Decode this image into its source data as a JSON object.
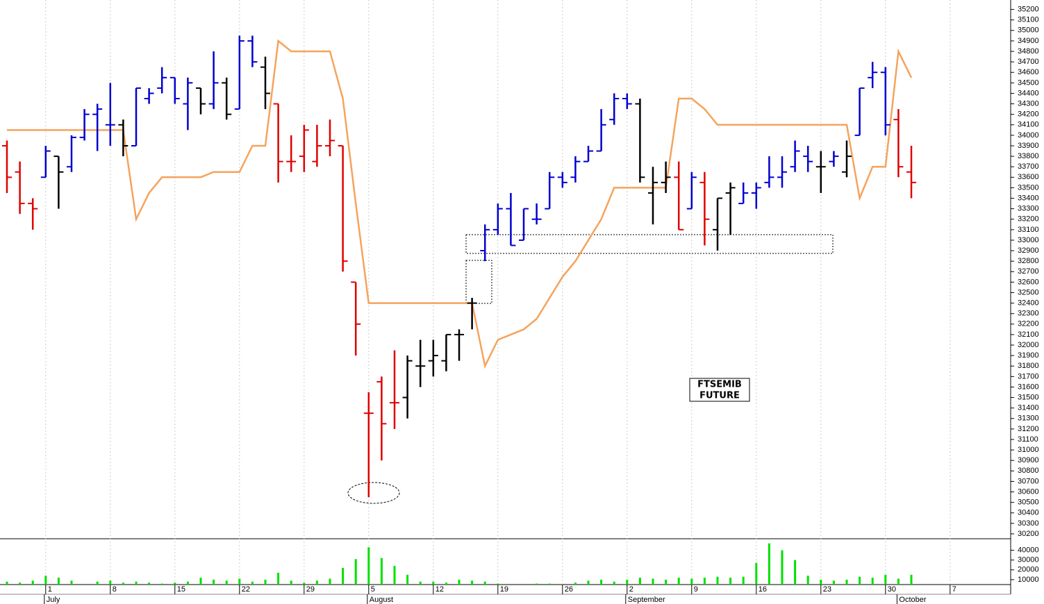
{
  "chart_data": {
    "type": "ohlc",
    "categories": [
      null,
      null,
      null,
      "1",
      null,
      null,
      null,
      null,
      "8",
      null,
      null,
      null,
      null,
      "15",
      null,
      null,
      null,
      null,
      "22",
      null,
      null,
      null,
      null,
      "29",
      null,
      null,
      null,
      null,
      "5",
      null,
      null,
      null,
      null,
      "12",
      null,
      null,
      null,
      null,
      "19",
      null,
      null,
      null,
      null,
      "26",
      null,
      null,
      null,
      null,
      "2",
      null,
      null,
      null,
      null,
      "9",
      null,
      null,
      null,
      null,
      "16",
      null,
      null,
      null,
      null,
      "23",
      null,
      null,
      null,
      null,
      "30",
      null,
      null,
      null,
      null,
      "7",
      null,
      null,
      null,
      null
    ],
    "category_months": [
      null,
      null,
      null,
      "July",
      null,
      null,
      null,
      null,
      null,
      null,
      null,
      null,
      null,
      null,
      null,
      null,
      null,
      null,
      null,
      null,
      null,
      null,
      null,
      null,
      null,
      null,
      null,
      null,
      "August",
      null,
      null,
      null,
      null,
      null,
      null,
      null,
      null,
      null,
      null,
      null,
      null,
      null,
      null,
      null,
      null,
      null,
      null,
      null,
      "September",
      null,
      null,
      null,
      null,
      null,
      null,
      null,
      null,
      null,
      null,
      null,
      null,
      null,
      null,
      null,
      null,
      null,
      null,
      null,
      null,
      "October",
      null,
      null,
      null,
      null,
      null,
      null,
      null,
      null
    ],
    "open": [
      33900,
      33650,
      33350,
      33600,
      33800,
      33700,
      33980,
      34200,
      34100,
      34100,
      33900,
      34350,
      34450,
      34550,
      34300,
      34450,
      34300,
      34500,
      34250,
      34900,
      34650,
      34300,
      33750,
      33800,
      33750,
      33900,
      33900,
      32600,
      31350,
      31650,
      31450,
      31500,
      31800,
      31850,
      31850,
      32100,
      32400,
      32900,
      33100,
      33300,
      33000,
      33200,
      33300,
      33600,
      33600,
      33750,
      33850,
      34150,
      34350,
      34300,
      33450,
      33550,
      33600,
      33300,
      33550,
      33100,
      33450,
      33350,
      33450,
      33550,
      33600,
      33700,
      33800,
      33700,
      33750,
      33650,
      34000,
      34550,
      34600,
      34150,
      33650,
      null,
      null,
      null,
      null,
      null,
      null,
      null
    ],
    "high": [
      33950,
      33750,
      33400,
      33900,
      33800,
      34000,
      34250,
      34300,
      34500,
      34150,
      34450,
      34450,
      34650,
      34550,
      34550,
      34450,
      34800,
      34550,
      34950,
      34950,
      34750,
      34300,
      34000,
      34100,
      34100,
      34150,
      33900,
      32600,
      31550,
      31700,
      31950,
      31900,
      32050,
      32050,
      32100,
      32150,
      32450,
      33150,
      33350,
      33450,
      33300,
      33350,
      33650,
      33650,
      33800,
      33900,
      34250,
      34400,
      34400,
      34350,
      33700,
      33750,
      33750,
      33650,
      33650,
      33400,
      33550,
      33550,
      33550,
      33800,
      33800,
      33950,
      33900,
      33850,
      33850,
      33950,
      34450,
      34700,
      34650,
      34250,
      33900,
      null,
      null,
      null,
      null,
      null,
      null,
      null
    ],
    "low": [
      33450,
      33250,
      33100,
      33600,
      33300,
      33650,
      33950,
      33850,
      33900,
      33800,
      33900,
      34300,
      34400,
      34300,
      34050,
      34200,
      34250,
      34150,
      34250,
      34650,
      34250,
      33550,
      33650,
      33650,
      33700,
      33800,
      32700,
      31900,
      30550,
      30900,
      31200,
      31300,
      31600,
      31700,
      31750,
      31850,
      32150,
      32800,
      33050,
      32950,
      33000,
      33150,
      33300,
      33500,
      33550,
      33750,
      33850,
      34100,
      34250,
      33550,
      33150,
      33450,
      33100,
      33300,
      32950,
      32900,
      33050,
      33350,
      33300,
      33500,
      33500,
      33650,
      33650,
      33450,
      33700,
      33600,
      34000,
      34450,
      34000,
      33600,
      33400,
      null,
      null,
      null,
      null,
      null,
      null,
      null
    ],
    "close": [
      33600,
      33350,
      33300,
      33850,
      33650,
      33980,
      34200,
      34250,
      34100,
      33900,
      34450,
      34400,
      34550,
      34350,
      34500,
      34300,
      34500,
      34200,
      34900,
      34700,
      34400,
      33750,
      33750,
      34050,
      33900,
      33950,
      32800,
      32200,
      31350,
      31250,
      31450,
      31850,
      31800,
      31900,
      32100,
      32100,
      32400,
      33100,
      33300,
      32950,
      33300,
      33200,
      33600,
      33550,
      33750,
      33850,
      34100,
      34350,
      34300,
      33600,
      33550,
      33600,
      33100,
      33600,
      33200,
      33400,
      33500,
      33450,
      33500,
      33600,
      33650,
      33850,
      33750,
      33700,
      33800,
      33800,
      34450,
      34600,
      34100,
      33700,
      33550,
      null,
      null,
      null,
      null,
      null,
      null,
      null
    ],
    "bar_colors": [
      "#e00000",
      "#e00000",
      "#e00000",
      "#0000d0",
      "#000000",
      "#0000d0",
      "#0000d0",
      "#0000d0",
      "#0000d0",
      "#000000",
      "#0000d0",
      "#0000d0",
      "#0000d0",
      "#0000d0",
      "#0000d0",
      "#000000",
      "#0000d0",
      "#000000",
      "#0000d0",
      "#0000d0",
      "#000000",
      "#e00000",
      "#e00000",
      "#e00000",
      "#e00000",
      "#e00000",
      "#e00000",
      "#e00000",
      "#e00000",
      "#e00000",
      "#e00000",
      "#000000",
      "#000000",
      "#000000",
      "#000000",
      "#000000",
      "#000000",
      "#0000d0",
      "#0000d0",
      "#0000d0",
      "#0000d0",
      "#0000d0",
      "#0000d0",
      "#0000d0",
      "#0000d0",
      "#0000d0",
      "#0000d0",
      "#0000d0",
      "#0000d0",
      "#000000",
      "#000000",
      "#000000",
      "#e00000",
      "#0000d0",
      "#e00000",
      "#000000",
      "#000000",
      "#0000d0",
      "#0000d0",
      "#0000d0",
      "#0000d0",
      "#0000d0",
      "#0000d0",
      "#000000",
      "#0000d0",
      "#000000",
      "#0000d0",
      "#0000d0",
      "#0000d0",
      "#e00000",
      "#e00000",
      null,
      null,
      null,
      null,
      null,
      null,
      null
    ],
    "overlay": {
      "color": "#f5a35c",
      "values": [
        34050,
        34050,
        34050,
        34050,
        34050,
        34050,
        34050,
        34050,
        34050,
        34050,
        33200,
        33450,
        33600,
        33600,
        33600,
        33600,
        33650,
        33650,
        33650,
        33900,
        33900,
        34900,
        34800,
        34800,
        34800,
        34800,
        34350,
        33350,
        32400,
        32400,
        32400,
        32400,
        32400,
        32400,
        32400,
        32400,
        32400,
        31800,
        32050,
        32100,
        32150,
        32250,
        32450,
        32650,
        32800,
        33000,
        33200,
        33500,
        33500,
        33500,
        33500,
        33500,
        34350,
        34350,
        34250,
        34100,
        34100,
        34100,
        34100,
        34100,
        34100,
        34100,
        34100,
        34100,
        34100,
        34100,
        33400,
        33700,
        33700,
        34800,
        34550,
        null,
        null,
        null,
        null,
        null,
        null,
        null
      ]
    },
    "ylim": [
      30160,
      35290
    ],
    "yticks": [
      30200,
      30300,
      30400,
      30500,
      30600,
      30700,
      30800,
      30900,
      31000,
      31100,
      31200,
      31300,
      31400,
      31500,
      31600,
      31700,
      31800,
      31900,
      32000,
      32100,
      32200,
      32300,
      32400,
      32500,
      32600,
      32700,
      32800,
      32900,
      33000,
      33100,
      33200,
      33300,
      33400,
      33500,
      33600,
      33700,
      33800,
      33900,
      34000,
      34100,
      34200,
      34300,
      34400,
      34500,
      34600,
      34700,
      34800,
      34900,
      35000,
      35100,
      35200
    ],
    "volume": {
      "color": "#00e000",
      "ylim": [
        5000,
        51000
      ],
      "yticks": [
        10000,
        20000,
        30000,
        40000
      ],
      "values": [
        8000,
        7000,
        9000,
        14000,
        12000,
        9000,
        4000,
        8000,
        9000,
        7000,
        8000,
        7000,
        6000,
        7000,
        8000,
        12000,
        10000,
        9000,
        11000,
        8000,
        10000,
        17000,
        9000,
        7000,
        9000,
        11000,
        22000,
        31000,
        43000,
        32000,
        24000,
        15000,
        8000,
        8000,
        7000,
        10000,
        9000,
        8000,
        6000,
        5000,
        5000,
        6000,
        6000,
        5000,
        7000,
        9000,
        10000,
        8000,
        10000,
        12000,
        11000,
        10000,
        12000,
        11000,
        12000,
        13000,
        12000,
        13000,
        27000,
        47000,
        40000,
        30000,
        14000,
        10000,
        9000,
        10000,
        13000,
        12000,
        15000,
        11000,
        15000,
        null,
        null,
        null,
        null,
        null,
        null,
        null
      ]
    },
    "annotation": [
      "FTSEMIB",
      "FUTURE"
    ],
    "grid": true
  }
}
